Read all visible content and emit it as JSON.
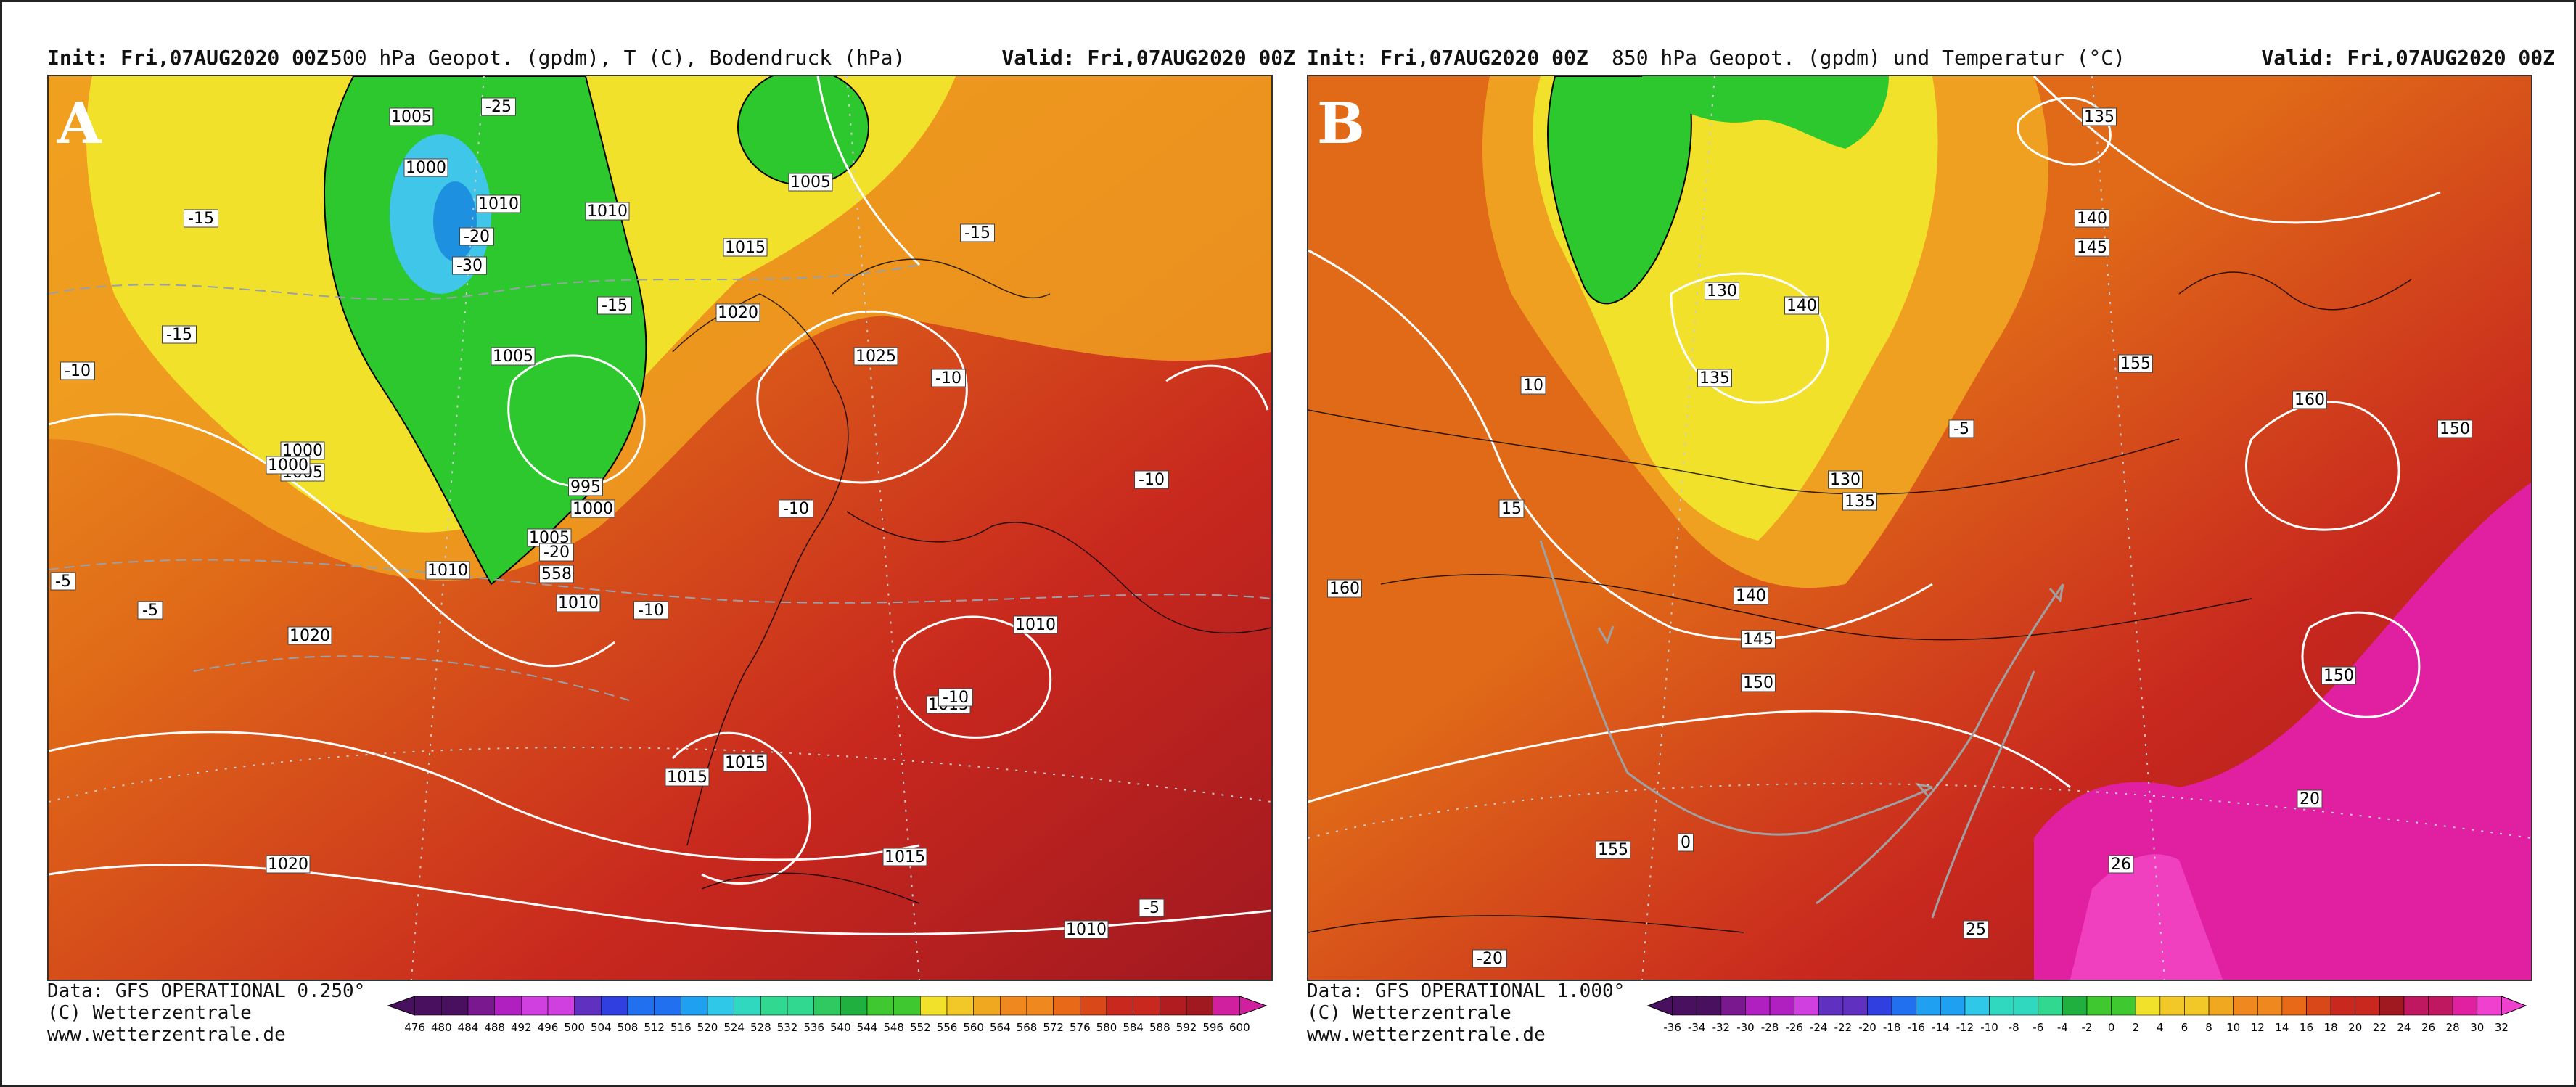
{
  "panels": [
    {
      "letter": "A",
      "init": "Init: Fri,07AUG2020 00Z",
      "parameter": "500 hPa Geopot. (gpdm), T (C), Bodendruck (hPa)",
      "valid": "Valid: Fri,07AUG2020 00Z",
      "footer": [
        "Data: GFS OPERATIONAL 0.250°",
        "(C) Wetterzentrale",
        "www.wetterzentrale.de"
      ],
      "colorbar_ticks": [
        "476",
        "480",
        "484",
        "488",
        "492",
        "496",
        "500",
        "504",
        "508",
        "512",
        "516",
        "520",
        "524",
        "528",
        "532",
        "536",
        "540",
        "544",
        "548",
        "552",
        "556",
        "560",
        "564",
        "568",
        "572",
        "576",
        "580",
        "584",
        "588",
        "592",
        "596",
        "600"
      ],
      "contour_labels": [
        "1005",
        "1000",
        "1010",
        "1010",
        "1005",
        "1015",
        "1020",
        "1025",
        "1005",
        "1000",
        "995",
        "1000",
        "1005",
        "1010",
        "1005",
        "1000",
        "1010",
        "1020",
        "1015",
        "1010",
        "1015",
        "1015",
        "1015",
        "1020",
        "1010",
        "-15",
        "-15",
        "-10",
        "-10",
        "-15",
        "-10",
        "-15",
        "-20",
        "-10",
        "-10",
        "-5",
        "-5",
        "-10",
        "-5",
        "558",
        "-25",
        "-20",
        "-30"
      ]
    },
    {
      "letter": "B",
      "init": "Init: Fri,07AUG2020 00Z",
      "parameter": "850 hPa Geopot. (gpdm) und Temperatur (°C)",
      "valid": "Valid: Fri,07AUG2020 00Z",
      "footer": [
        "Data: GFS OPERATIONAL 1.000°",
        "(C) Wetterzentrale",
        "www.wetterzentrale.de"
      ],
      "colorbar_ticks": [
        "-36",
        "-34",
        "-32",
        "-30",
        "-28",
        "-26",
        "-24",
        "-22",
        "-20",
        "-18",
        "-16",
        "-14",
        "-12",
        "-10",
        "-8",
        "-6",
        "-4",
        "-2",
        "0",
        "2",
        "4",
        "6",
        "8",
        "10",
        "12",
        "14",
        "16",
        "18",
        "20",
        "22",
        "24",
        "26",
        "28",
        "30",
        "32"
      ],
      "contour_labels": [
        "135",
        "140",
        "145",
        "130",
        "140",
        "135",
        "155",
        "160",
        "150",
        "130",
        "135",
        "140",
        "145",
        "150",
        "160",
        "150",
        "155",
        "-5",
        "10",
        "15",
        "20",
        "25",
        "26",
        "-20",
        "0"
      ]
    }
  ],
  "colors": {
    "cold_green": "#2dc82d",
    "cyan": "#3fc6e8",
    "yellow": "#f2e12a",
    "orange": "#f0a020",
    "dark_orange": "#e06a18",
    "red": "#c8281e",
    "dark_red": "#a01820",
    "magenta": "#e020a0",
    "contour_white": "#ffffff",
    "coast_black": "#000000",
    "arrow_grey": "#a0a0a0"
  }
}
